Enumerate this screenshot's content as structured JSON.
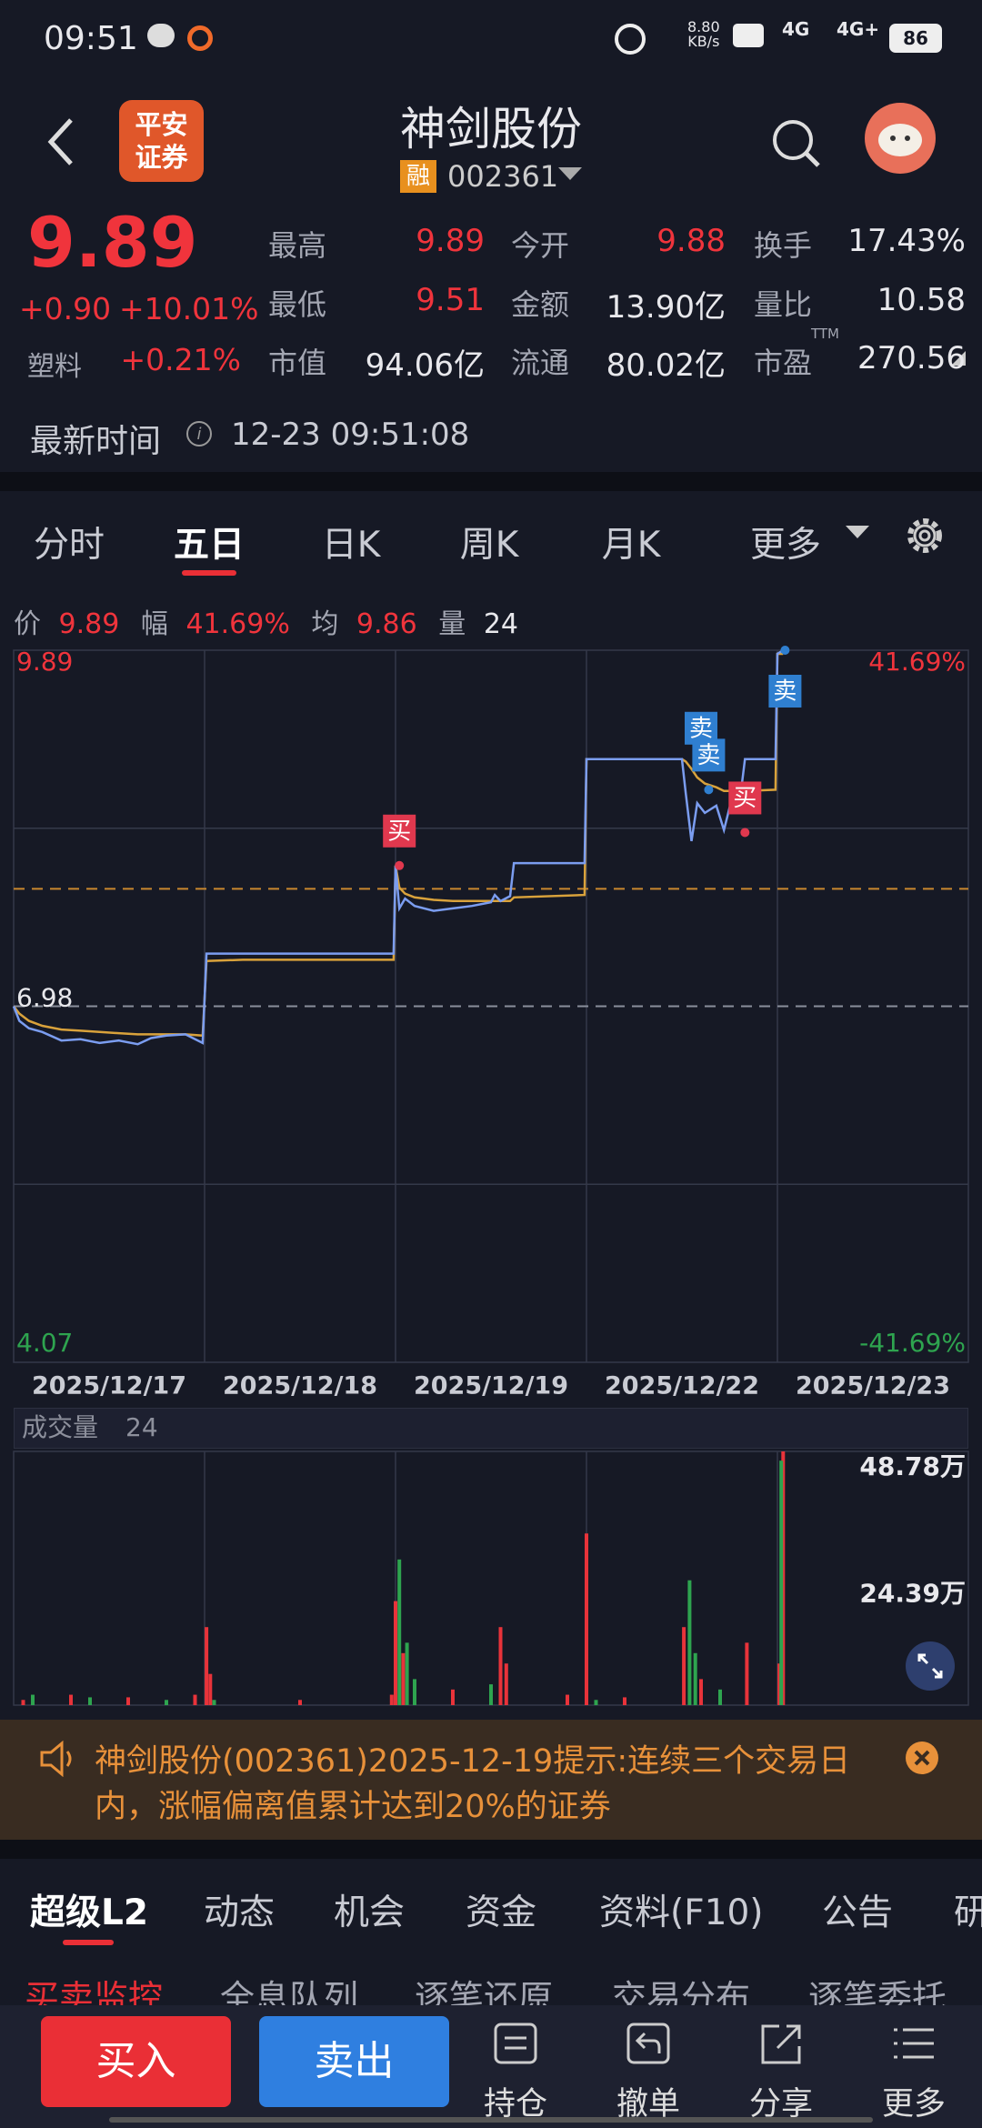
{
  "status_bar": {
    "time": "09:51",
    "speed": "8.80",
    "speed_unit": "KB/s",
    "network": "4G",
    "network2": "4G+",
    "battery": "86"
  },
  "header": {
    "logo_line1": "平安",
    "logo_line2": "证券",
    "title": "神剑股份",
    "badge": "融",
    "code": "002361"
  },
  "quote": {
    "price": "9.89",
    "change": "+0.90",
    "change_pct": "+10.01%",
    "sector": "塑料",
    "sector_pct": "+0.21%",
    "ttm": "TTM",
    "stats": [
      {
        "label": "最高",
        "value": "9.89",
        "color": "#f0343c"
      },
      {
        "label": "今开",
        "value": "9.88",
        "color": "#f0343c"
      },
      {
        "label": "换手",
        "value": "17.43%",
        "color": "#e8e8ec"
      },
      {
        "label": "最低",
        "value": "9.51",
        "color": "#f0343c"
      },
      {
        "label": "金额",
        "value": "13.90亿",
        "color": "#e8e8ec"
      },
      {
        "label": "量比",
        "value": "10.58",
        "color": "#e8e8ec"
      },
      {
        "label": "市值",
        "value": "94.06亿",
        "color": "#e8e8ec"
      },
      {
        "label": "流通",
        "value": "80.02亿",
        "color": "#e8e8ec"
      },
      {
        "label": "市盈",
        "value": "270.56",
        "color": "#e8e8ec"
      }
    ]
  },
  "update": {
    "label": "最新时间",
    "time": "12-23 09:51:08"
  },
  "tabs": {
    "items": [
      "分时",
      "五日",
      "日K",
      "周K",
      "月K",
      "更多"
    ],
    "active": 1
  },
  "info_bar": {
    "price_label": "价",
    "price": "9.89",
    "amp_label": "幅",
    "amp": "41.69%",
    "avg_label": "均",
    "avg": "9.86",
    "vol_label": "量",
    "vol": "24"
  },
  "chart_data": [
    {
      "type": "line",
      "categories": [
        "2025/12/17",
        "2025/12/18",
        "2025/12/19",
        "2025/12/22",
        "2025/12/23"
      ],
      "xlim": [
        0,
        5
      ],
      "x": [
        0,
        0.03,
        0.08,
        0.15,
        0.25,
        0.35,
        0.45,
        0.55,
        0.65,
        0.72,
        0.8,
        0.9,
        0.99,
        1.01,
        1.2,
        1.99,
        2.0,
        2.02,
        2.05,
        2.1,
        2.2,
        2.3,
        2.4,
        2.5,
        2.52,
        2.55,
        2.6,
        2.62,
        2.99,
        3.0,
        3.5,
        3.52,
        3.55,
        3.58,
        3.62,
        3.68,
        3.72,
        3.76,
        3.8,
        3.83,
        3.99,
        4.0,
        4.03
      ],
      "ylim": [
        4.07,
        9.89
      ],
      "yticks": [
        4.07,
        6.98,
        9.89
      ],
      "y2lim": [
        -41.69,
        41.69
      ],
      "y2ticks": [
        {
          "value": -41.69,
          "label": "-41.69%"
        },
        {
          "value": 41.69,
          "label": "41.69%"
        }
      ],
      "grid": true,
      "series": [
        {
          "color": "#7b9df0",
          "values": [
            6.98,
            6.86,
            6.8,
            6.77,
            6.7,
            6.71,
            6.68,
            6.7,
            6.67,
            6.72,
            6.74,
            6.75,
            6.68,
            7.41,
            7.41,
            7.41,
            8.13,
            7.78,
            7.86,
            7.8,
            7.76,
            7.78,
            7.8,
            7.83,
            7.89,
            7.84,
            7.88,
            8.15,
            8.15,
            9.0,
            9.0,
            8.72,
            8.33,
            8.64,
            8.56,
            8.62,
            8.42,
            8.67,
            8.62,
            9.0,
            9.0,
            9.86,
            9.89
          ]
        },
        {
          "color": "#d9a23b",
          "values": [
            6.98,
            6.92,
            6.86,
            6.82,
            6.79,
            6.78,
            6.77,
            6.76,
            6.75,
            6.75,
            6.75,
            6.75,
            6.74,
            7.35,
            7.36,
            7.36,
            8.13,
            7.95,
            7.9,
            7.87,
            7.85,
            7.84,
            7.84,
            7.84,
            7.84,
            7.84,
            7.84,
            7.87,
            7.89,
            9.0,
            9.0,
            8.98,
            8.92,
            8.85,
            8.8,
            8.77,
            8.74,
            8.74,
            8.73,
            8.74,
            8.75,
            9.86,
            9.86
          ]
        }
      ],
      "reference_lines": [
        {
          "value": 6.98,
          "color": "#8a8f9c"
        },
        {
          "value": 7.94,
          "color": "#c9882e"
        }
      ],
      "annotations": [
        {
          "text": "买",
          "x": 2.02,
          "y": 8.13,
          "color": "#e0384e",
          "placement": "above"
        },
        {
          "text": "卖",
          "x": 3.6,
          "y": 8.97,
          "color": "#2f7fd0",
          "placement": "above"
        },
        {
          "text": "卖",
          "x": 3.64,
          "y": 8.75,
          "color": "#2f7fd0",
          "placement": "above"
        },
        {
          "text": "买",
          "x": 3.83,
          "y": 8.4,
          "color": "#e0384e",
          "placement": "above"
        },
        {
          "text": "卖",
          "x": 4.04,
          "y": 9.89,
          "color": "#2f7fd0",
          "placement": "below"
        }
      ]
    },
    {
      "type": "bar",
      "title": "成交量",
      "title_value": "24",
      "xlim": [
        0,
        5
      ],
      "ylim": [
        0,
        48.78
      ],
      "yticks": [
        {
          "value": 24.39,
          "label": "24.39万"
        },
        {
          "value": 48.78,
          "label": "48.78万"
        }
      ],
      "series": [
        {
          "color": "#e8333a",
          "x": [
            0.05,
            0.3,
            0.6,
            0.95,
            1.01,
            1.03,
            1.5,
            1.98,
            2.0,
            2.04,
            2.3,
            2.55,
            2.58,
            2.9,
            3.0,
            3.2,
            3.51,
            3.6,
            3.84,
            4.01,
            4.03
          ],
          "values": [
            1,
            2,
            1.5,
            2,
            15,
            6,
            1,
            2,
            20,
            10,
            3,
            15,
            8,
            2,
            33,
            1.5,
            15,
            5,
            12,
            8,
            48.78
          ]
        },
        {
          "color": "#2ea44f",
          "x": [
            0.1,
            0.4,
            0.8,
            1.05,
            2.02,
            2.06,
            2.1,
            2.5,
            3.05,
            3.54,
            3.57,
            3.7,
            4.02
          ],
          "values": [
            2,
            1.5,
            1,
            1,
            28,
            12,
            5,
            4,
            1,
            24,
            10,
            3,
            47
          ]
        }
      ]
    }
  ],
  "notice": {
    "lines": [
      "神剑股份(002361)2025-12-19提示:连续三个交易日",
      "内，涨幅偏离值累计达到20%的证券"
    ]
  },
  "detail_tabs": {
    "items": [
      "超级L2",
      "动态",
      "机会",
      "资金",
      "资料(F10)",
      "公告",
      "研"
    ],
    "active": 0
  },
  "sub_tabs": {
    "items": [
      "买卖监控",
      "全息队列",
      "逐笔还原",
      "交易分布",
      "逐笔委托"
    ],
    "active": 0
  },
  "bottom_nav": {
    "buy": "买入",
    "sell": "卖出",
    "items": [
      "持仓",
      "撤单",
      "分享",
      "更多"
    ]
  }
}
